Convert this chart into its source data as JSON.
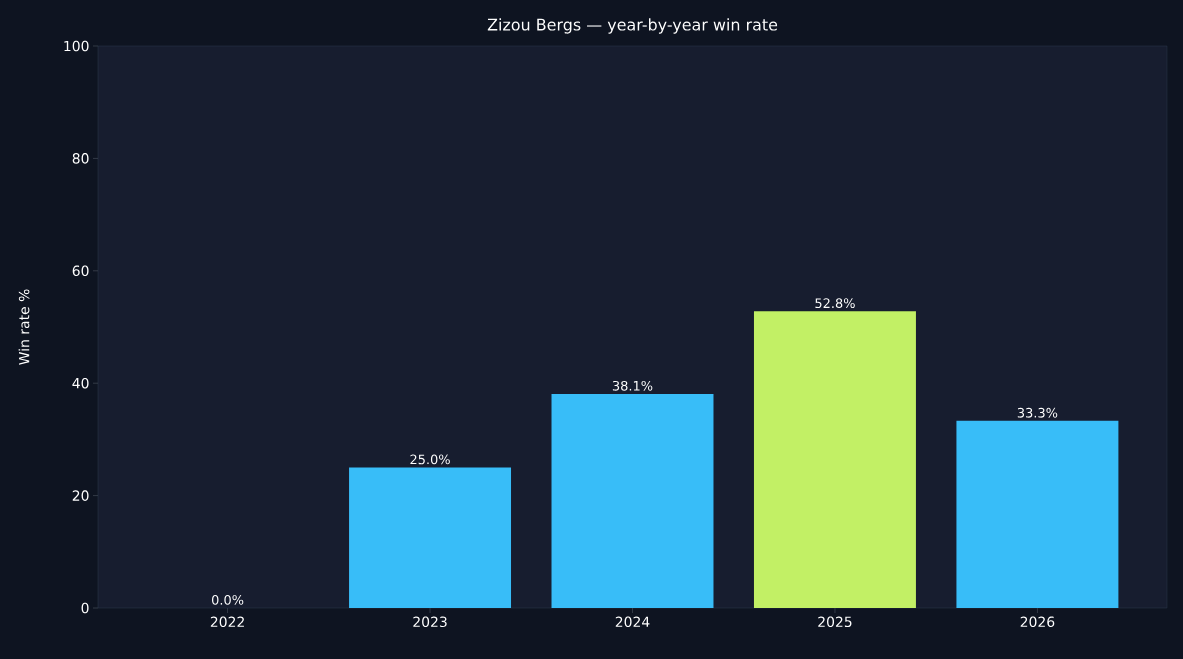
{
  "chart_data": {
    "type": "bar",
    "title": "Zizou Bergs — year-by-year win rate",
    "ylabel": "Win rate %",
    "categories": [
      "2022",
      "2023",
      "2024",
      "2025",
      "2026"
    ],
    "values": [
      0.0,
      25.0,
      38.1,
      52.8,
      33.3
    ],
    "colors": [
      "#38bdf8",
      "#38bdf8",
      "#38bdf8",
      "#c2f065",
      "#38bdf8"
    ],
    "value_labels": [
      "0.0%",
      "25.0%",
      "38.1%",
      "52.8%",
      "33.3%"
    ],
    "ylim": [
      0,
      100
    ],
    "yticks": [
      0,
      20,
      40,
      60,
      80,
      100
    ],
    "grid": false
  }
}
